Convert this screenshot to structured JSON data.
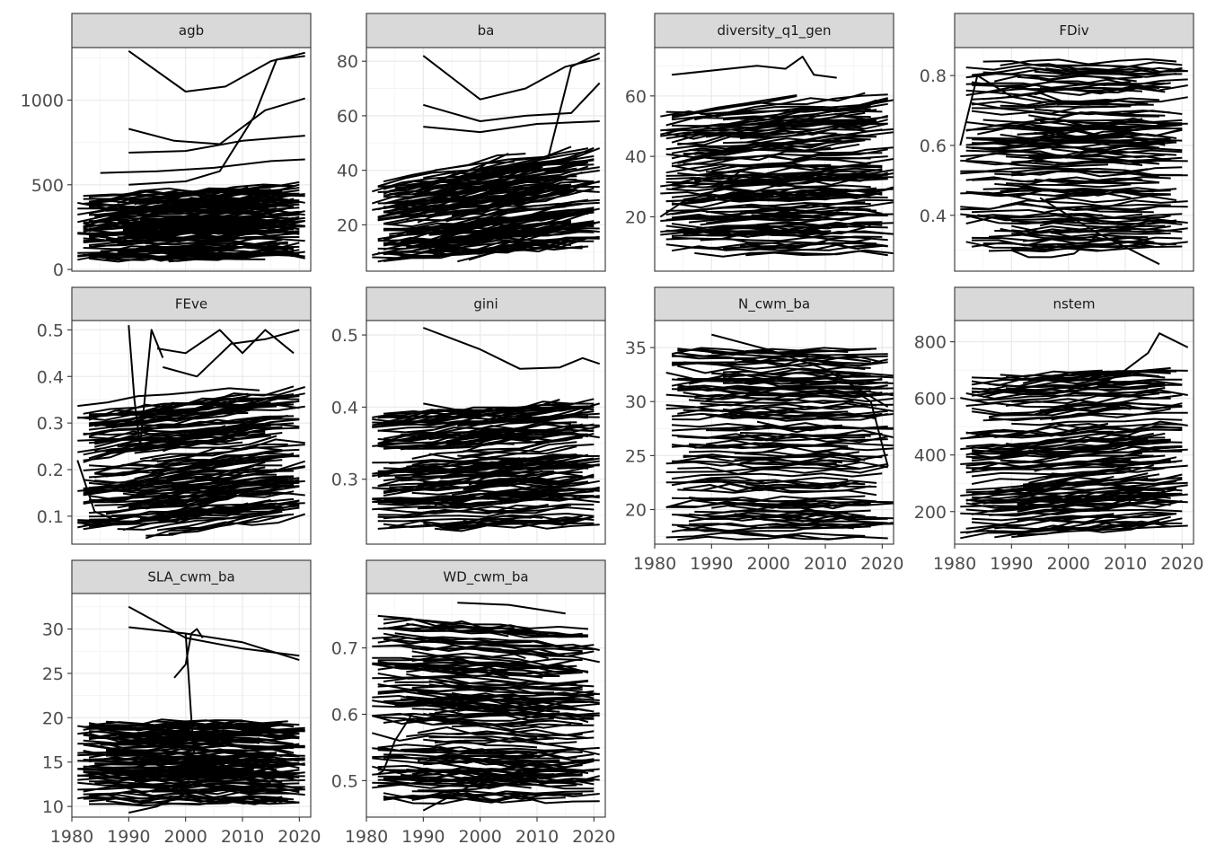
{
  "chart_data": {
    "type": "line",
    "layout": "facet_wrap",
    "ncol": 4,
    "grid": true,
    "line_color": "#000000",
    "strip_fill": "#d9d9d9",
    "x_ticks": [
      1980,
      1990,
      2000,
      2010,
      2020
    ],
    "xlim": [
      1980,
      2022
    ],
    "panels": [
      {
        "label": "agb",
        "ylim": [
          -10,
          1310
        ],
        "yticks": [
          0,
          500,
          1000
        ],
        "xrange": [
          1981,
          2021
        ],
        "nseries": 140,
        "ystart": [
          60,
          430
        ],
        "yend": [
          80,
          500
        ],
        "drift": 0.25,
        "start_year": [
          1981,
          1998
        ],
        "highlight": [
          {
            "x": [
              1990,
              2000,
              2007,
              2015,
              2021
            ],
            "y": [
              1290,
              1050,
              1080,
              1230,
              1280
            ]
          },
          {
            "x": [
              1990,
              1998,
              2006,
              2014,
              2021
            ],
            "y": [
              830,
              760,
              740,
              940,
              1010
            ]
          },
          {
            "x": [
              1990,
              2000,
              2006,
              2012,
              2016,
              2021
            ],
            "y": [
              500,
              520,
              580,
              900,
              1240,
              1260
            ]
          },
          {
            "x": [
              1990,
              2000,
              2010,
              2021
            ],
            "y": [
              690,
              700,
              760,
              790
            ]
          },
          {
            "x": [
              1985,
              1995,
              2005,
              2015,
              2021
            ],
            "y": [
              570,
              580,
              600,
              640,
              650
            ]
          }
        ]
      },
      {
        "label": "ba",
        "ylim": [
          3,
          85
        ],
        "yticks": [
          20,
          40,
          60,
          80
        ],
        "xrange": [
          1981,
          2021
        ],
        "nseries": 140,
        "ystart": [
          7,
          36
        ],
        "yend": [
          12,
          48
        ],
        "drift": 0.2,
        "start_year": [
          1981,
          1998
        ],
        "highlight": [
          {
            "x": [
              1990,
              2000,
              2008,
              2015,
              2021
            ],
            "y": [
              82,
              66,
              70,
              78,
              81
            ]
          },
          {
            "x": [
              1990,
              2000,
              2008,
              2016,
              2021
            ],
            "y": [
              64,
              58,
              60,
              61,
              72
            ]
          },
          {
            "x": [
              1990,
              2000,
              2010,
              2021
            ],
            "y": [
              56,
              54,
              57,
              58
            ]
          },
          {
            "x": [
              1992,
              2005,
              2012,
              2016,
              2021
            ],
            "y": [
              40,
              44,
              45,
              78,
              83
            ]
          }
        ]
      },
      {
        "label": "diversity_q1_gen",
        "ylim": [
          2,
          76
        ],
        "yticks": [
          20,
          40,
          60
        ],
        "xrange": [
          1981,
          2022
        ],
        "nseries": 130,
        "ystart": [
          7,
          56
        ],
        "yend": [
          7,
          62
        ],
        "drift": 0.1,
        "start_year": [
          1981,
          1998
        ],
        "highlight": [
          {
            "x": [
              1983,
              1998,
              2003,
              2006,
              2008,
              2012
            ],
            "y": [
              67,
              70,
              69,
              73,
              67,
              66
            ]
          },
          {
            "x": [
              1981,
              1985,
              1990,
              1995
            ],
            "y": [
              20,
              25,
              28,
              35
            ]
          }
        ]
      },
      {
        "label": "FDiv",
        "ylim": [
          0.24,
          0.88
        ],
        "yticks": [
          0.4,
          0.6,
          0.8
        ],
        "xrange": [
          1981,
          2021
        ],
        "nseries": 130,
        "ystart": [
          0.3,
          0.84
        ],
        "yend": [
          0.3,
          0.84
        ],
        "drift": 0.0,
        "start_year": [
          1981,
          1998
        ],
        "highlight": [
          {
            "x": [
              1981,
              1984,
              1990,
              1995,
              2000
            ],
            "y": [
              0.6,
              0.8,
              0.74,
              0.75,
              0.72
            ]
          },
          {
            "x": [
              1990,
              1993,
              1997,
              2001,
              2005
            ],
            "y": [
              0.3,
              0.28,
              0.28,
              0.29,
              0.34
            ]
          },
          {
            "x": [
              1995,
              2005,
              2016
            ],
            "y": [
              0.45,
              0.35,
              0.26
            ]
          }
        ]
      },
      {
        "label": "FEve",
        "ylim": [
          0.04,
          0.52
        ],
        "yticks": [
          0.1,
          0.2,
          0.3,
          0.4,
          0.5
        ],
        "xrange": [
          1981,
          2021
        ],
        "nseries": 130,
        "ystart": [
          0.06,
          0.34
        ],
        "yend": [
          0.1,
          0.38
        ],
        "drift": 0.0,
        "start_year": [
          1981,
          1998
        ],
        "highlight": [
          {
            "x": [
              1990,
              1991,
              1992,
              1994,
              1996
            ],
            "y": [
              0.51,
              0.35,
              0.25,
              0.5,
              0.44
            ]
          },
          {
            "x": [
              1995,
              2000,
              2006,
              2010,
              2014,
              2019
            ],
            "y": [
              0.46,
              0.45,
              0.5,
              0.45,
              0.5,
              0.45
            ]
          },
          {
            "x": [
              1996,
              2002,
              2008,
              2014,
              2020
            ],
            "y": [
              0.42,
              0.4,
              0.47,
              0.48,
              0.5
            ]
          },
          {
            "x": [
              1981,
              1984,
              1988
            ],
            "y": [
              0.22,
              0.11,
              0.09
            ]
          }
        ]
      },
      {
        "label": "gini",
        "ylim": [
          0.21,
          0.52
        ],
        "yticks": [
          0.3,
          0.4,
          0.5
        ],
        "xrange": [
          1981,
          2021
        ],
        "nseries": 130,
        "ystart": [
          0.23,
          0.39
        ],
        "yend": [
          0.24,
          0.41
        ],
        "drift": 0.0,
        "start_year": [
          1981,
          1998
        ],
        "highlight": [
          {
            "x": [
              1990,
              2000,
              2007,
              2014,
              2018,
              2021
            ],
            "y": [
              0.51,
              0.48,
              0.453,
              0.455,
              0.468,
              0.46
            ]
          },
          {
            "x": [
              1990,
              2000,
              2008,
              2014,
              2021
            ],
            "y": [
              0.405,
              0.39,
              0.38,
              0.39,
              0.405
            ]
          }
        ]
      },
      {
        "label": "N_cwm_ba",
        "ylim": [
          16.8,
          37.5
        ],
        "yticks": [
          20,
          25,
          30,
          35
        ],
        "xrange": [
          1982,
          2022
        ],
        "nseries": 120,
        "ystart": [
          17.5,
          35
        ],
        "yend": [
          17.5,
          35
        ],
        "drift": 0.0,
        "start_year": [
          1982,
          2000
        ],
        "highlight": [
          {
            "x": [
              1990,
              2000,
              2010,
              2021
            ],
            "y": [
              36.2,
              34.8,
              33,
              29.5
            ]
          },
          {
            "x": [
              1990,
              2000,
              2010,
              2021
            ],
            "y": [
              34.5,
              34.6,
              34.3,
              34.4
            ]
          },
          {
            "x": [
              2015,
              2018,
              2020,
              2021
            ],
            "y": [
              31,
              30,
              26,
              24
            ]
          }
        ]
      },
      {
        "label": "nstem",
        "ylim": [
          85,
          875
        ],
        "yticks": [
          200,
          400,
          600,
          800
        ],
        "xrange": [
          1981,
          2021
        ],
        "nseries": 130,
        "ystart": [
          110,
          680
        ],
        "yend": [
          150,
          710
        ],
        "drift": 0.0,
        "start_year": [
          1981,
          1998
        ],
        "highlight": [
          {
            "x": [
              2005,
              2010,
              2014,
              2016,
              2021
            ],
            "y": [
              640,
              700,
              760,
              830,
              780
            ]
          },
          {
            "x": [
              1990,
              2000,
              2010,
              2021
            ],
            "y": [
              110,
              130,
              140,
              150
            ]
          }
        ]
      },
      {
        "label": "SLA_cwm_ba",
        "ylim": [
          8.8,
          34
        ],
        "yticks": [
          10,
          15,
          20,
          25,
          30
        ],
        "xrange": [
          1981,
          2021
        ],
        "nseries": 130,
        "ystart": [
          10.5,
          19.5
        ],
        "yend": [
          10.5,
          19.5
        ],
        "drift": 0.0,
        "start_year": [
          1981,
          1996
        ],
        "highlight": [
          {
            "x": [
              1990,
              2000,
              2010,
              2020
            ],
            "y": [
              32.5,
              29,
              27.8,
              27
            ]
          },
          {
            "x": [
              1990,
              2000,
              2010,
              2020
            ],
            "y": [
              30.2,
              29.5,
              28.5,
              26.5
            ]
          },
          {
            "x": [
              1998,
              2000,
              2001,
              2002,
              2003
            ],
            "y": [
              24.5,
              26,
              29.5,
              30,
              29
            ]
          },
          {
            "x": [
              2000,
              2000.5,
              2001,
              2001.5
            ],
            "y": [
              29.5,
              25,
              20,
              16
            ]
          },
          {
            "x": [
              1990,
              1995,
              2000,
              2010,
              2020
            ],
            "y": [
              9.3,
              10,
              11.5,
              12,
              11.8
            ]
          }
        ]
      },
      {
        "label": "WD_cwm_ba",
        "ylim": [
          0.445,
          0.782
        ],
        "yticks": [
          0.5,
          0.6,
          0.7
        ],
        "xrange": [
          1981,
          2021
        ],
        "nseries": 140,
        "ystart": [
          0.47,
          0.745
        ],
        "yend": [
          0.47,
          0.73
        ],
        "drift": 0.0,
        "start_year": [
          1981,
          1996
        ],
        "highlight": [
          {
            "x": [
              1990,
              2000,
              2010,
              2020
            ],
            "y": [
              0.455,
              0.5,
              0.52,
              0.53
            ]
          },
          {
            "x": [
              1982,
              1983,
              1985,
              1988
            ],
            "y": [
              0.51,
              0.515,
              0.56,
              0.6
            ]
          },
          {
            "x": [
              1996,
              2005,
              2015
            ],
            "y": [
              0.768,
              0.765,
              0.752
            ]
          }
        ]
      }
    ]
  }
}
